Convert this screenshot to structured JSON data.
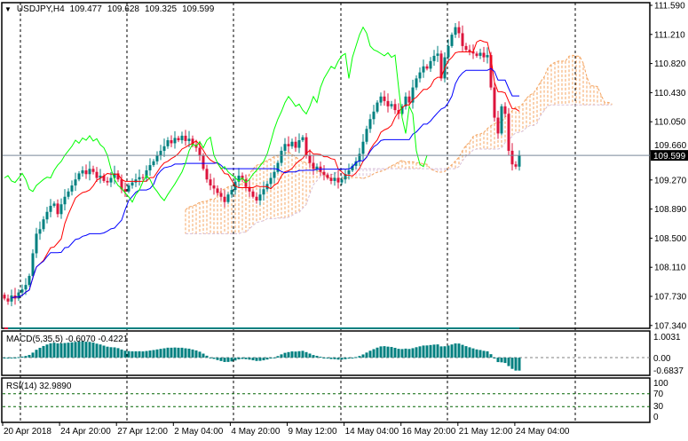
{
  "header": {
    "menu_glyph": "▼",
    "symbol": "USDJPY,H4",
    "open": "109.477",
    "high": "109.628",
    "low": "109.325",
    "close": "109.599"
  },
  "colors": {
    "bull": "#008080",
    "bear": "#dc143c",
    "tenkan": "#ff0000",
    "kijun": "#0000ff",
    "chikou": "#00ff00",
    "span_a": "#f4a460",
    "span_b": "#d8bfd8",
    "price_line": "#778899",
    "macd_hist": "#008080",
    "macd_signal": "#dc143c",
    "rsi": "#008080",
    "level": "#006400"
  },
  "chart_data": {
    "type": "candlestick",
    "title": "USDJPY,H4",
    "timeframe": "H4",
    "first_open": 107.75,
    "close": [
      107.7,
      107.66,
      107.74,
      107.7,
      107.78,
      107.82,
      107.88,
      108.0,
      108.3,
      108.56,
      108.62,
      108.75,
      108.85,
      108.93,
      108.96,
      108.82,
      108.95,
      109.05,
      109.12,
      109.2,
      109.28,
      109.36,
      109.4,
      109.35,
      109.42,
      109.38,
      109.3,
      109.33,
      109.26,
      109.24,
      109.3,
      109.36,
      109.28,
      109.15,
      109.12,
      109.2,
      109.24,
      109.28,
      109.31,
      109.3,
      109.4,
      109.47,
      109.52,
      109.6,
      109.66,
      109.72,
      109.8,
      109.76,
      109.83,
      109.8,
      109.86,
      109.79,
      109.82,
      109.74,
      109.7,
      109.6,
      109.42,
      109.28,
      109.2,
      109.16,
      109.1,
      109.05,
      108.98,
      109.08,
      109.14,
      109.25,
      109.33,
      109.28,
      109.18,
      109.12,
      109.05,
      109.0,
      109.08,
      109.15,
      109.22,
      109.3,
      109.38,
      109.5,
      109.66,
      109.75,
      109.72,
      109.78,
      109.7,
      109.8,
      109.84,
      109.6,
      109.5,
      109.42,
      109.45,
      109.38,
      109.34,
      109.3,
      109.26,
      109.3,
      109.24,
      109.28,
      109.35,
      109.4,
      109.46,
      109.52,
      109.62,
      109.78,
      109.95,
      110.08,
      110.18,
      110.3,
      110.38,
      110.32,
      110.25,
      110.28,
      110.2,
      110.15,
      110.25,
      110.38,
      110.3,
      110.5,
      110.62,
      110.7,
      110.78,
      110.75,
      110.85,
      110.92,
      110.95,
      110.62,
      110.9,
      111.05,
      111.2,
      111.3,
      111.22,
      111.05,
      111.0,
      110.98,
      110.95,
      110.92,
      110.96,
      110.9,
      110.93,
      110.5,
      110.1,
      109.89,
      110.25,
      110.15,
      109.66,
      109.48,
      109.45,
      109.599
    ],
    "ylim": [
      107.34,
      111.59
    ],
    "y_ticks": [
      "111.590",
      "111.210",
      "110.820",
      "110.430",
      "110.050",
      "109.660",
      "109.270",
      "108.890",
      "108.500",
      "108.110",
      "107.730",
      "107.340"
    ],
    "x_ticks": [
      "20 Apr 2018",
      "24 Apr 20:00",
      "27 Apr 12:00",
      "2 May 04:00",
      "4 May 20:00",
      "9 May 12:00",
      "14 May 04:00",
      "16 May 20:00",
      "21 May 12:00",
      "24 May 04:00"
    ],
    "last_price": "109.599",
    "indicators": {
      "ichimoku": {
        "tenkan": 9,
        "kijun": 26,
        "senkou": 52
      },
      "macd": {
        "label": "MACD(5,35,5) -0.6070 -0.4221",
        "fast": 5,
        "slow": 35,
        "signal": 5,
        "scale_labels": [
          "1.0031",
          "0.00",
          "-0.6837"
        ],
        "max": 1.0031,
        "min": -0.6837
      },
      "rsi": {
        "label": "RSI(14) 32.9890",
        "period": 14,
        "scale_labels": [
          "100",
          "70",
          "30",
          "0"
        ],
        "levels": [
          70,
          30
        ]
      }
    },
    "grid": "vertical-dashed"
  }
}
